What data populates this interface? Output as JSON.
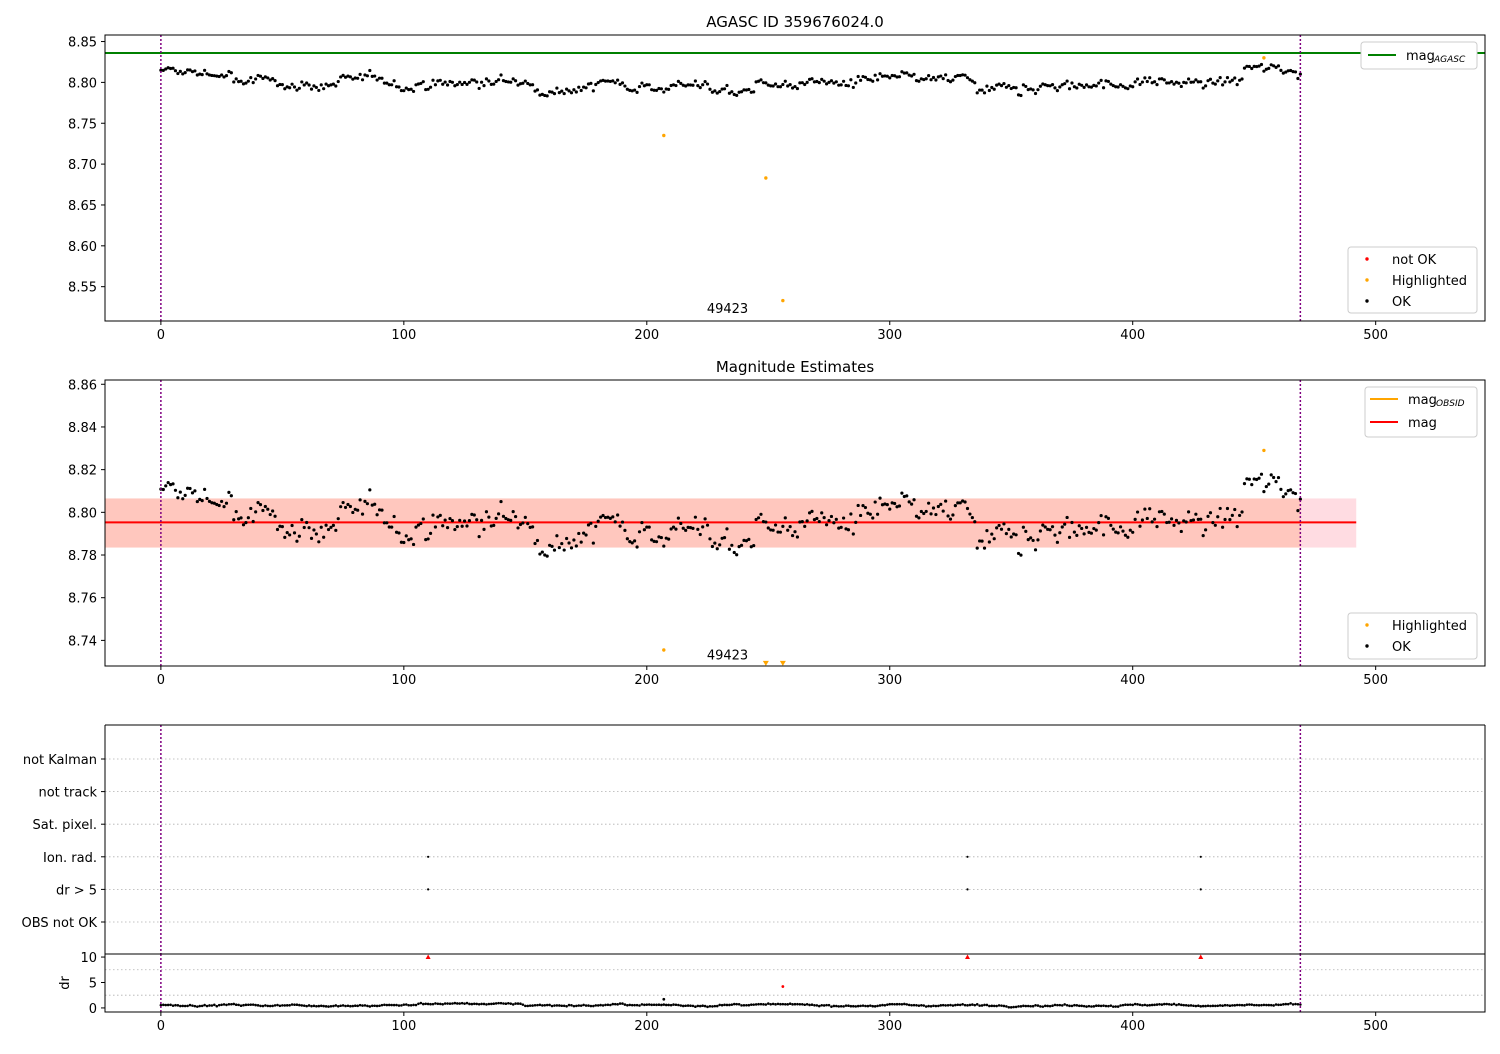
{
  "chart_data": [
    {
      "type": "scatter",
      "title": "AGASC ID 359676024.0",
      "xlabel": "",
      "ylabel": "",
      "xlim": [
        -23,
        545
      ],
      "ylim": [
        8.508,
        8.858
      ],
      "xticks": [
        0,
        100,
        200,
        300,
        400,
        500
      ],
      "yticks": [
        8.55,
        8.6,
        8.65,
        8.7,
        8.75,
        8.8,
        8.85
      ],
      "vlines": [
        0,
        469
      ],
      "hline": {
        "name": "mag",
        "subscript": "AGASC",
        "value": 8.836,
        "color": "#008000"
      },
      "annotation": {
        "text": "49423",
        "x": 235,
        "y": 8.524
      },
      "legend_top": {
        "position": "upper-right",
        "entries": [
          {
            "name": "mag",
            "subscript": "AGASC",
            "color": "#008000",
            "marker": "line"
          }
        ]
      },
      "legend_bottom": {
        "position": "lower-right",
        "entries": [
          {
            "name": "not OK",
            "color": "#ff0000",
            "marker": "dot"
          },
          {
            "name": "Highlighted",
            "color": "#ffa500",
            "marker": "dot"
          },
          {
            "name": "OK",
            "color": "#000000",
            "marker": "dot"
          }
        ]
      },
      "series": [
        {
          "name": "Highlighted",
          "color": "#ffa500",
          "points": [
            [
              207,
              8.735
            ],
            [
              249,
              8.683
            ],
            [
              256,
              8.533
            ],
            [
              454,
              8.83
            ]
          ]
        }
      ]
    },
    {
      "type": "scatter",
      "title": "Magnitude Estimates",
      "xlabel": "",
      "ylabel": "",
      "xlim": [
        -23,
        545
      ],
      "ylim": [
        8.728,
        8.862
      ],
      "xticks": [
        0,
        100,
        200,
        300,
        400,
        500
      ],
      "yticks": [
        8.74,
        8.76,
        8.78,
        8.8,
        8.82,
        8.84,
        8.86
      ],
      "vlines": [
        0,
        469
      ],
      "band_red": {
        "y0": 8.7835,
        "y1": 8.8065,
        "x0": -23,
        "x1": 492,
        "color": "#ffc0cb"
      },
      "band_orange": {
        "y0": 8.7835,
        "y1": 8.8065,
        "x0": -23,
        "x1": 469,
        "color": "#ffa07a"
      },
      "mag_line": {
        "name": "mag",
        "value": 8.7953,
        "color": "#ff0000"
      },
      "mag_obsid_line": {
        "name": "mag",
        "subscript": "OBSID",
        "value": 8.7953,
        "color": "#ffa500"
      },
      "annotation": {
        "text": "49423",
        "x": 235,
        "y": 8.7335
      },
      "limit_markers": [
        [
          249,
          8.729
        ],
        [
          256,
          8.729
        ]
      ],
      "legend_top": {
        "position": "upper-right",
        "entries": [
          {
            "name": "mag",
            "subscript": "OBSID",
            "color": "#ffa500",
            "marker": "line"
          },
          {
            "name": "mag",
            "subscript": "",
            "color": "#ff0000",
            "marker": "line"
          }
        ]
      },
      "legend_bottom": {
        "position": "lower-right",
        "entries": [
          {
            "name": "Highlighted",
            "color": "#ffa500",
            "marker": "dot"
          },
          {
            "name": "OK",
            "color": "#000000",
            "marker": "dot"
          }
        ]
      },
      "series": [
        {
          "name": "Highlighted",
          "color": "#ffa500",
          "points": [
            [
              207,
              8.7355
            ],
            [
              454,
              8.829
            ]
          ]
        }
      ]
    },
    {
      "type": "scatter",
      "title": "",
      "xlabel": "",
      "ylabel": "",
      "xlim": [
        -23,
        545
      ],
      "vlines": [
        0,
        469
      ],
      "categories": [
        "OBS not OK",
        "dr > 5",
        "Ion. rad.",
        "Sat. pixel.",
        "not track",
        "not Kalman"
      ],
      "flag_points": [
        {
          "category": "Ion. rad.",
          "x": [
            110,
            332,
            428
          ]
        },
        {
          "category": "dr > 5",
          "x": [
            110,
            332,
            428
          ]
        }
      ],
      "grid": "horizontal dotted"
    },
    {
      "type": "scatter",
      "title": "",
      "xlabel": "",
      "ylabel": "dr",
      "xlim": [
        -23,
        545
      ],
      "ylim": [
        -0.8,
        10.6
      ],
      "xticks": [
        0,
        100,
        200,
        300,
        400,
        500
      ],
      "yticks": [
        0,
        5,
        10
      ],
      "vlines": [
        0,
        469
      ],
      "clipped_markers": [
        110,
        332,
        428
      ],
      "series": [
        {
          "name": "not OK",
          "color": "#ff0000",
          "points": [
            [
              256,
              4.2
            ]
          ]
        },
        {
          "name": "OK",
          "color": "#000000",
          "points": [
            [
              207,
              1.7
            ]
          ]
        }
      ]
    }
  ]
}
